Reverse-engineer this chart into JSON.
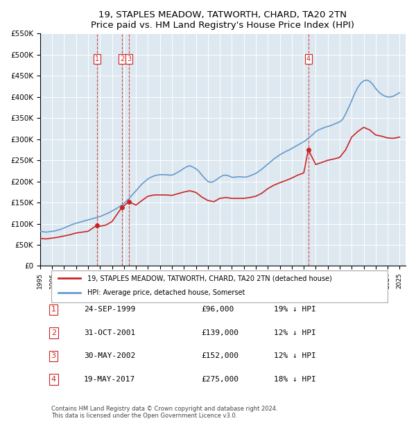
{
  "title": "19, STAPLES MEADOW, TATWORTH, CHARD, TA20 2TN",
  "subtitle": "Price paid vs. HM Land Registry's House Price Index (HPI)",
  "bg_color": "#dde8f0",
  "plot_bg_color": "#dde8f0",
  "hpi_color": "#6699cc",
  "price_color": "#cc2222",
  "ylabel_max": 550000,
  "ylabel_step": 50000,
  "xmin": 1995.0,
  "xmax": 2025.5,
  "transactions": [
    {
      "num": 1,
      "date": "24-SEP-1999",
      "price": 96000,
      "year": 1999.73,
      "hpi_pct": "19% ↓ HPI"
    },
    {
      "num": 2,
      "date": "31-OCT-2001",
      "price": 139000,
      "year": 2001.83,
      "hpi_pct": "12% ↓ HPI"
    },
    {
      "num": 3,
      "date": "30-MAY-2002",
      "price": 152000,
      "year": 2002.41,
      "hpi_pct": "12% ↓ HPI"
    },
    {
      "num": 4,
      "date": "19-MAY-2017",
      "price": 275000,
      "year": 2017.38,
      "hpi_pct": "18% ↓ HPI"
    }
  ],
  "legend_line1": "19, STAPLES MEADOW, TATWORTH, CHARD, TA20 2TN (detached house)",
  "legend_line2": "HPI: Average price, detached house, Somerset",
  "footnote": "Contains HM Land Registry data © Crown copyright and database right 2024.\nThis data is licensed under the Open Government Licence v3.0.",
  "hpi_data_years": [
    1995.0,
    1995.25,
    1995.5,
    1995.75,
    1996.0,
    1996.25,
    1996.5,
    1996.75,
    1997.0,
    1997.25,
    1997.5,
    1997.75,
    1998.0,
    1998.25,
    1998.5,
    1998.75,
    1999.0,
    1999.25,
    1999.5,
    1999.75,
    2000.0,
    2000.25,
    2000.5,
    2000.75,
    2001.0,
    2001.25,
    2001.5,
    2001.75,
    2002.0,
    2002.25,
    2002.5,
    2002.75,
    2003.0,
    2003.25,
    2003.5,
    2003.75,
    2004.0,
    2004.25,
    2004.5,
    2004.75,
    2005.0,
    2005.25,
    2005.5,
    2005.75,
    2006.0,
    2006.25,
    2006.5,
    2006.75,
    2007.0,
    2007.25,
    2007.5,
    2007.75,
    2008.0,
    2008.25,
    2008.5,
    2008.75,
    2009.0,
    2009.25,
    2009.5,
    2009.75,
    2010.0,
    2010.25,
    2010.5,
    2010.75,
    2011.0,
    2011.25,
    2011.5,
    2011.75,
    2012.0,
    2012.25,
    2012.5,
    2012.75,
    2013.0,
    2013.25,
    2013.5,
    2013.75,
    2014.0,
    2014.25,
    2014.5,
    2014.75,
    2015.0,
    2015.25,
    2015.5,
    2015.75,
    2016.0,
    2016.25,
    2016.5,
    2016.75,
    2017.0,
    2017.25,
    2017.5,
    2017.75,
    2018.0,
    2018.25,
    2018.5,
    2018.75,
    2019.0,
    2019.25,
    2019.5,
    2019.75,
    2020.0,
    2020.25,
    2020.5,
    2020.75,
    2021.0,
    2021.25,
    2021.5,
    2021.75,
    2022.0,
    2022.25,
    2022.5,
    2022.75,
    2023.0,
    2023.25,
    2023.5,
    2023.75,
    2024.0,
    2024.25,
    2024.5,
    2024.75,
    2025.0
  ],
  "hpi_data_values": [
    82000,
    81000,
    80000,
    81000,
    82000,
    83000,
    85000,
    87000,
    90000,
    93000,
    96000,
    99000,
    101000,
    103000,
    105000,
    107000,
    109000,
    111000,
    113000,
    115000,
    117000,
    120000,
    123000,
    126000,
    130000,
    134000,
    138000,
    143000,
    148000,
    155000,
    162000,
    170000,
    178000,
    186000,
    194000,
    200000,
    206000,
    210000,
    213000,
    215000,
    216000,
    216000,
    216000,
    215000,
    215000,
    218000,
    222000,
    226000,
    231000,
    235000,
    237000,
    234000,
    230000,
    224000,
    215000,
    207000,
    200000,
    198000,
    200000,
    205000,
    210000,
    214000,
    215000,
    213000,
    210000,
    210000,
    211000,
    211000,
    210000,
    211000,
    213000,
    216000,
    219000,
    224000,
    229000,
    235000,
    241000,
    247000,
    253000,
    258000,
    263000,
    267000,
    271000,
    274000,
    278000,
    282000,
    286000,
    290000,
    294000,
    299000,
    305000,
    311000,
    318000,
    322000,
    325000,
    328000,
    330000,
    332000,
    335000,
    338000,
    341000,
    347000,
    360000,
    375000,
    391000,
    408000,
    422000,
    432000,
    438000,
    440000,
    437000,
    430000,
    420000,
    412000,
    406000,
    402000,
    400000,
    400000,
    402000,
    406000,
    410000
  ],
  "red_line_data_years": [
    1995.0,
    1995.5,
    1996.0,
    1996.5,
    1997.0,
    1997.5,
    1998.0,
    1998.5,
    1999.0,
    1999.73,
    2000.0,
    2000.5,
    2001.0,
    2001.83,
    2002.41,
    2003.0,
    2003.5,
    2004.0,
    2004.5,
    2005.0,
    2005.5,
    2006.0,
    2006.5,
    2007.0,
    2007.5,
    2008.0,
    2008.5,
    2009.0,
    2009.5,
    2010.0,
    2010.5,
    2011.0,
    2011.5,
    2012.0,
    2012.5,
    2013.0,
    2013.5,
    2014.0,
    2014.5,
    2015.0,
    2015.5,
    2016.0,
    2016.5,
    2017.0,
    2017.38,
    2018.0,
    2018.5,
    2019.0,
    2019.5,
    2020.0,
    2020.5,
    2021.0,
    2021.5,
    2022.0,
    2022.5,
    2023.0,
    2023.5,
    2024.0,
    2024.5,
    2025.0
  ],
  "red_line_data_values": [
    65000,
    64000,
    66000,
    68000,
    71000,
    74000,
    78000,
    80000,
    82000,
    96000,
    94000,
    97000,
    105000,
    139000,
    152000,
    144000,
    155000,
    165000,
    168000,
    168000,
    168000,
    167000,
    171000,
    175000,
    178000,
    174000,
    163000,
    155000,
    152000,
    160000,
    162000,
    160000,
    160000,
    160000,
    162000,
    165000,
    172000,
    183000,
    191000,
    197000,
    202000,
    208000,
    215000,
    220000,
    275000,
    240000,
    245000,
    250000,
    253000,
    257000,
    275000,
    305000,
    318000,
    328000,
    322000,
    310000,
    307000,
    303000,
    302000,
    305000
  ]
}
